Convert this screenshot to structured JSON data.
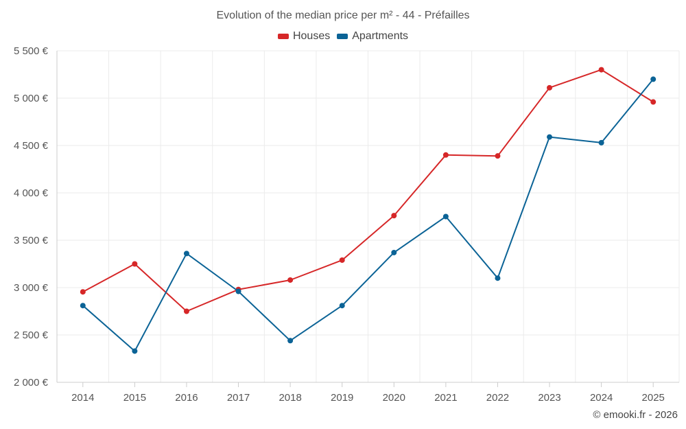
{
  "chart_data": {
    "type": "line",
    "title": "Evolution of the median price per m² - 44 - Préfailles",
    "categories": [
      "2014",
      "2015",
      "2016",
      "2017",
      "2018",
      "2019",
      "2020",
      "2021",
      "2022",
      "2023",
      "2024",
      "2025"
    ],
    "series": [
      {
        "name": "Houses",
        "color": "#d62728",
        "values": [
          2955,
          3250,
          2750,
          2980,
          3080,
          3290,
          3760,
          4400,
          4390,
          5110,
          5300,
          4960
        ]
      },
      {
        "name": "Apartments",
        "color": "#0b6396",
        "values": [
          2810,
          2330,
          3360,
          2960,
          2440,
          2810,
          3370,
          3750,
          3100,
          4590,
          4530,
          5200
        ]
      }
    ],
    "ylim": [
      2000,
      5500
    ],
    "yticks": [
      2000,
      2500,
      3000,
      3500,
      4000,
      4500,
      5000,
      5500
    ],
    "ytick_labels": [
      "2 000 €",
      "2 500 €",
      "3 000 €",
      "3 500 €",
      "4 000 €",
      "4 500 €",
      "5 000 €",
      "5 500 €"
    ],
    "xlabel": "",
    "ylabel": "",
    "grid": true,
    "legend": "top-center"
  },
  "legend": {
    "houses": "Houses",
    "apartments": "Apartments"
  },
  "footer": {
    "copyright": "© emooki.fr - 2026"
  }
}
